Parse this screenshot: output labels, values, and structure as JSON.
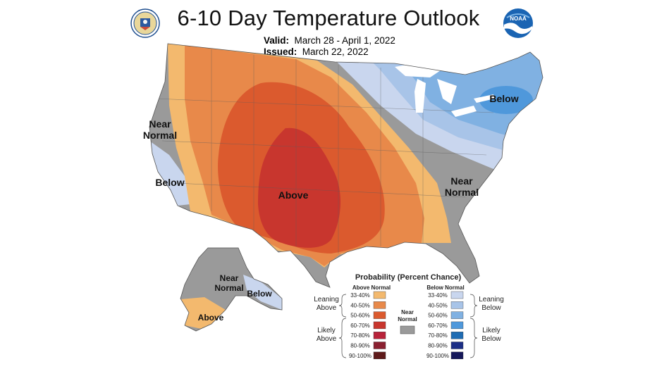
{
  "header": {
    "title": "6-10 Day Temperature Outlook",
    "valid_label": "Valid:",
    "valid_value": "March 28 - April 1, 2022",
    "issued_label": "Issued:",
    "issued_value": "March 22, 2022"
  },
  "logos": {
    "left": "doc-seal",
    "right_text": "NOAA"
  },
  "map": {
    "labels": {
      "near_normal_west_1": "Near",
      "near_normal_west_2": "Normal",
      "below_west": "Below",
      "above_center": "Above",
      "below_northeast": "Below",
      "near_normal_east_1": "Near",
      "near_normal_east_2": "Normal",
      "ak_near_normal_1": "Near",
      "ak_near_normal_2": "Normal",
      "ak_below": "Below",
      "ak_above": "Above"
    }
  },
  "legend": {
    "title": "Probability (Percent Chance)",
    "above_header": "Above Normal",
    "below_header": "Below Normal",
    "near_1": "Near",
    "near_2": "Normal",
    "leaning_above_1": "Leaning",
    "leaning_above_2": "Above",
    "likely_above_1": "Likely",
    "likely_above_2": "Above",
    "leaning_below_1": "Leaning",
    "leaning_below_2": "Below",
    "likely_below_1": "Likely",
    "likely_below_2": "Below",
    "ranges": [
      "33-40%",
      "40-50%",
      "50-60%",
      "60-70%",
      "70-80%",
      "80-90%",
      "90-100%"
    ],
    "above_colors": [
      "#f3b96e",
      "#e8894a",
      "#db5a2e",
      "#c8362e",
      "#b8233a",
      "#8a2030",
      "#5e1a1a"
    ],
    "below_colors": [
      "#c9d6ee",
      "#a8c4e8",
      "#80b1e2",
      "#4f98db",
      "#1f6cb3",
      "#1c2f86",
      "#15185a"
    ],
    "near_color": "#9a9a9a"
  }
}
